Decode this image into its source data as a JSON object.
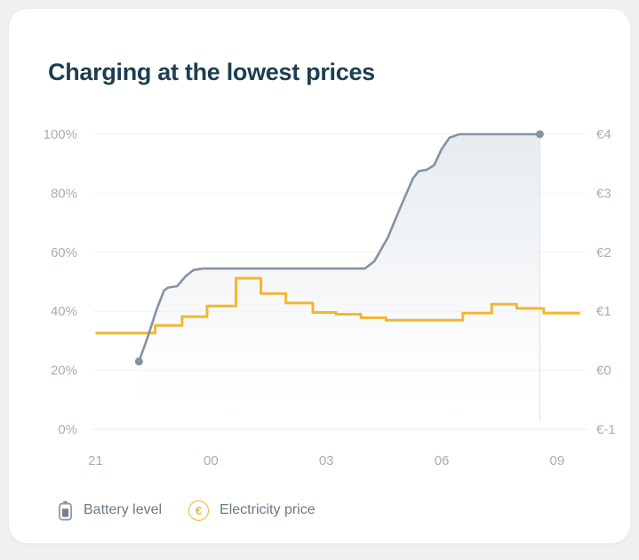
{
  "card": {
    "title": "Charging at the lowest prices"
  },
  "legend": {
    "battery": {
      "label": "Battery level",
      "icon": "battery-icon"
    },
    "price": {
      "label": "Electricity price",
      "icon": "euro-icon",
      "icon_glyph": "€"
    }
  },
  "colors": {
    "page_bg": "#f0f0f2",
    "card_bg": "#ffffff",
    "title_text": "#1d3d52",
    "axis_text": "#a5aeb9",
    "legend_text": "#6b7987",
    "battery_line": "#8593a1",
    "price_line": "#f3b72f",
    "area_fill_top": "#e5eaef",
    "gridline": "#f4f3f6",
    "baseline": "#eceaef"
  },
  "chart_data": {
    "type": "line",
    "title": "Charging at the lowest prices",
    "grid": "horizontal-only",
    "legend_position": "bottom-left",
    "x_axis": {
      "labels": [
        "21",
        "00",
        "03",
        "06",
        "09"
      ],
      "hours_from_start": [
        0,
        3,
        6,
        9,
        12
      ],
      "start_time": "21:00",
      "range_hours": [
        0,
        12.75
      ]
    },
    "left_y_axis": {
      "name": "Battery level",
      "unit": "%",
      "ticks": [
        "100%",
        "80%",
        "60%",
        "40%",
        "20%",
        "0%"
      ],
      "tick_values": [
        100,
        80,
        60,
        40,
        20,
        0
      ],
      "range": [
        0,
        100
      ]
    },
    "right_y_axis": {
      "name": "Electricity price",
      "unit": "EUR",
      "ticks": [
        "€4",
        "€3",
        "€2",
        "€1",
        "€0",
        "€-1"
      ],
      "tick_values": [
        4,
        3,
        2,
        1,
        0,
        -1
      ],
      "range": [
        -1,
        4
      ]
    },
    "series": [
      {
        "name": "Battery level",
        "type": "line-area",
        "unit": "%",
        "color": "#8593a1",
        "has_start_dot": true,
        "has_end_dot": true,
        "points_hours_pct": [
          [
            1.13,
            23
          ],
          [
            1.35,
            31
          ],
          [
            1.6,
            41
          ],
          [
            1.78,
            47
          ],
          [
            1.88,
            48
          ],
          [
            2.12,
            48.5
          ],
          [
            2.35,
            52
          ],
          [
            2.55,
            54
          ],
          [
            2.8,
            54.5
          ],
          [
            7.0,
            54.5
          ],
          [
            7.25,
            57
          ],
          [
            7.6,
            65
          ],
          [
            7.95,
            76
          ],
          [
            8.25,
            85
          ],
          [
            8.4,
            87.5
          ],
          [
            8.62,
            88
          ],
          [
            8.8,
            89.5
          ],
          [
            9.0,
            95
          ],
          [
            9.2,
            98.8
          ],
          [
            9.45,
            100
          ],
          [
            11.55,
            100
          ]
        ]
      },
      {
        "name": "Electricity price",
        "type": "step",
        "unit": "EUR",
        "color": "#f3b72f",
        "segments_start_end_eur": [
          [
            0.0,
            1.55,
            0.63
          ],
          [
            1.55,
            2.25,
            0.76
          ],
          [
            2.25,
            2.9,
            0.91
          ],
          [
            2.9,
            3.65,
            1.09
          ],
          [
            3.65,
            4.3,
            1.56
          ],
          [
            4.3,
            4.95,
            1.3
          ],
          [
            4.95,
            5.65,
            1.14
          ],
          [
            5.65,
            6.25,
            0.98
          ],
          [
            6.25,
            6.9,
            0.95
          ],
          [
            6.9,
            7.55,
            0.89
          ],
          [
            7.55,
            9.55,
            0.85
          ],
          [
            9.55,
            10.3,
            0.97
          ],
          [
            10.3,
            10.95,
            1.12
          ],
          [
            10.95,
            11.65,
            1.05
          ],
          [
            11.65,
            12.6,
            0.97
          ]
        ]
      }
    ]
  }
}
